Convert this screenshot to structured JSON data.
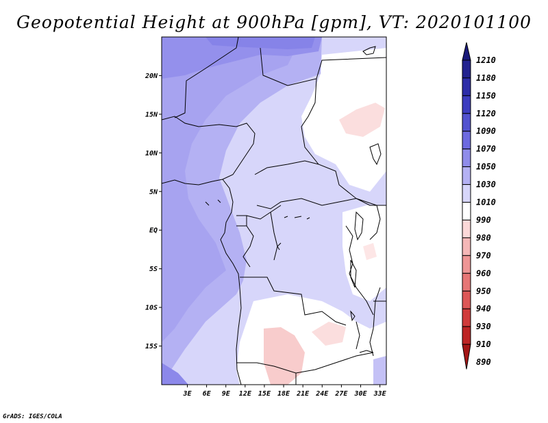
{
  "title": "Geopotential Height at 900hPa [gpm], VT: 2020101100",
  "credit": "GrADS: IGES/COLA",
  "map": {
    "lat_range": [
      -20,
      25
    ],
    "lon_range": [
      -1,
      34
    ],
    "lat_labels": [
      "20N",
      "15N",
      "10N",
      "5N",
      "EQ",
      "5S",
      "10S",
      "15S"
    ],
    "lon_labels": [
      "3E",
      "6E",
      "9E",
      "12E",
      "15E",
      "18E",
      "21E",
      "24E",
      "27E",
      "30E",
      "33E"
    ]
  },
  "colorbar": {
    "levels": [
      "1210",
      "1180",
      "1150",
      "1120",
      "1090",
      "1070",
      "1050",
      "1030",
      "1010",
      "990",
      "980",
      "970",
      "960",
      "950",
      "940",
      "930",
      "910",
      "890"
    ],
    "colors": [
      "#1a1a7a",
      "#22228f",
      "#2d2da8",
      "#3d3dbf",
      "#5252cf",
      "#6d6ae0",
      "#8f8cea",
      "#b4b1f3",
      "#d7d6fa",
      "#ffffff",
      "#fbd8d8",
      "#f5b7b7",
      "#ee9595",
      "#e67676",
      "#dd5757",
      "#d03b3b",
      "#bd2525",
      "#a31616"
    ]
  }
}
